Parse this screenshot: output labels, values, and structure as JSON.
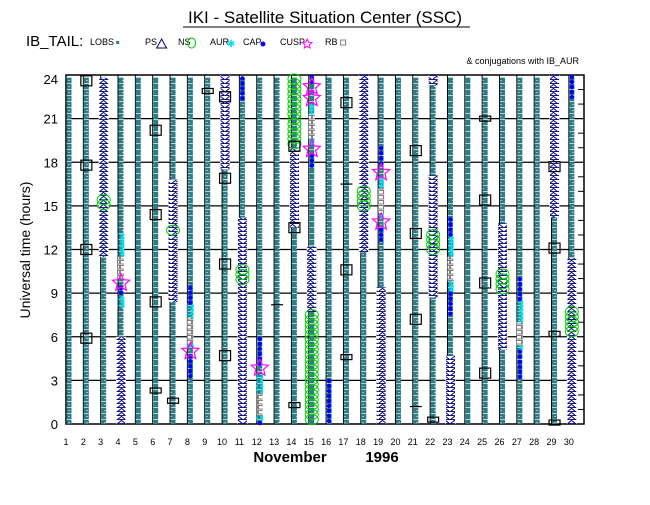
{
  "chart_data": {
    "type": "timeline",
    "title": "IKI - Satellite Situation Center (SSC)",
    "subject": "IB_TAIL:",
    "legend": [
      {
        "key": "LOBS",
        "label": "LOBS",
        "color": "#2e7d86"
      },
      {
        "key": "PS",
        "label": "PS",
        "color": "#2e7d86"
      },
      {
        "key": "NS",
        "label": "NS",
        "color": "#000080"
      },
      {
        "key": "AUR",
        "label": "AUR",
        "color": "#00cc00"
      },
      {
        "key": "CAP",
        "label": "CAP",
        "color": "#00e0ee"
      },
      {
        "key": "CUSP",
        "label": "CUSP",
        "color": "#0000ff"
      },
      {
        "key": "RB",
        "label": "RB",
        "color": "#808080"
      }
    ],
    "star_color": "#ff00ff",
    "conjugation_note": "& conjugations with IB_AUR",
    "ylabel": "Universal time (hours)",
    "xlabel_month": "November",
    "xlabel_year": "1996",
    "ylim": [
      0,
      24
    ],
    "yticks": [
      "0",
      "3",
      "6",
      "9",
      "12",
      "15",
      "18",
      "21",
      "24"
    ],
    "xticks": [
      "1",
      "2",
      "3",
      "4",
      "5",
      "6",
      "7",
      "8",
      "9",
      "10",
      "11",
      "12",
      "13",
      "14",
      "15",
      "16",
      "17",
      "18",
      "19",
      "20",
      "21",
      "22",
      "23",
      "24",
      "25",
      "26",
      "27",
      "28",
      "29",
      "30"
    ],
    "days": [
      {
        "day": 3,
        "NS": [
          [
            11.5,
            23.8
          ]
        ],
        "AUR": [
          [
            14.7,
            15.7
          ]
        ]
      },
      {
        "day": 4,
        "NS": [
          [
            0,
            6
          ]
        ],
        "CAP": [
          [
            8,
            8.8
          ],
          [
            11.5,
            13.1
          ]
        ],
        "CUSP": [
          [
            8.8,
            9.5
          ]
        ],
        "RB": [
          [
            10,
            11.5
          ]
        ],
        "stars": [
          9.7
        ]
      },
      {
        "day": 7,
        "NS": [
          [
            8.4,
            16.8
          ]
        ],
        "AUR": [
          [
            12.8,
            13.6
          ]
        ]
      },
      {
        "day": 8,
        "CUSP": [
          [
            3,
            4.8
          ],
          [
            8.3,
            9.5
          ]
        ],
        "CAP": [
          [
            5.2,
            5.5
          ],
          [
            7.3,
            8.3
          ]
        ],
        "RB": [
          [
            5.5,
            7.3
          ]
        ],
        "stars": [
          5
        ]
      },
      {
        "day": 10,
        "NS": [
          [
            17.5,
            24
          ]
        ]
      },
      {
        "day": 11,
        "NS": [
          [
            0,
            14.2
          ]
        ],
        "CUSP": [
          [
            22.3,
            23.9
          ]
        ],
        "AUR": [
          [
            9.4,
            10.9
          ]
        ]
      },
      {
        "day": 12,
        "CUSP": [
          [
            0,
            0.2
          ],
          [
            4.1,
            6
          ]
        ],
        "CAP": [
          [
            0.2,
            0.6
          ],
          [
            2.1,
            3.4
          ]
        ],
        "RB": [
          [
            0.6,
            2.1
          ]
        ],
        "stars": [
          3.85
        ]
      },
      {
        "day": 14,
        "NS": [
          [
            13.5,
            19
          ]
        ],
        "AUR": [
          [
            19,
            24
          ]
        ]
      },
      {
        "day": 15,
        "NS": [
          [
            7.7,
            12.2
          ]
        ],
        "AUR": [
          [
            0,
            7.8
          ]
        ],
        "CUSP": [
          [
            17.6,
            18.6
          ],
          [
            23.5,
            24
          ]
        ],
        "CAP": [
          [
            19.2,
            19.6
          ],
          [
            21.3,
            22
          ]
        ],
        "RB": [
          [
            19.6,
            21.3
          ]
        ],
        "stars": [
          18.9,
          22.4,
          23.2
        ]
      },
      {
        "day": 16,
        "CUSP": [
          [
            0,
            3.1
          ]
        ]
      },
      {
        "day": 18,
        "NS": [
          [
            11.8,
            24
          ]
        ],
        "AUR": [
          [
            14.6,
            16.3
          ]
        ]
      },
      {
        "day": 19,
        "NS": [
          [
            0,
            9.4
          ]
        ],
        "CUSP": [
          [
            12.5,
            13.5
          ],
          [
            17.6,
            19.1
          ]
        ],
        "CAP": [
          [
            14.2,
            14.5
          ],
          [
            16.2,
            17
          ]
        ],
        "RB": [
          [
            14.5,
            16.2
          ]
        ],
        "stars": [
          13.9,
          17.3
        ]
      },
      {
        "day": 22,
        "NS": [
          [
            8.7,
            17.1
          ],
          [
            23.3,
            24
          ]
        ],
        "AUR": [
          [
            11.6,
            13.3
          ]
        ]
      },
      {
        "day": 23,
        "NS": [
          [
            0,
            4.7
          ]
        ],
        "CUSP": [
          [
            7.5,
            9.1
          ],
          [
            12.9,
            14.2
          ]
        ],
        "CAP": [
          [
            9.1,
            9.8
          ],
          [
            11.5,
            12.9
          ]
        ],
        "RB": [
          [
            9.8,
            11.5
          ]
        ]
      },
      {
        "day": 26,
        "NS": [
          [
            5.1,
            13.8
          ]
        ],
        "AUR": [
          [
            9,
            10.6
          ]
        ]
      },
      {
        "day": 27,
        "CUSP": [
          [
            3.2,
            5.1
          ],
          [
            8.5,
            10.1
          ]
        ],
        "CAP": [
          [
            5.1,
            5.4
          ],
          [
            7,
            8.5
          ]
        ],
        "RB": [
          [
            5.4,
            7
          ]
        ]
      },
      {
        "day": 29,
        "NS": [
          [
            14.2,
            24
          ]
        ]
      },
      {
        "day": 30,
        "NS": [
          [
            0,
            11.4
          ]
        ],
        "AUR": [
          [
            6,
            8
          ]
        ],
        "CUSP": [
          [
            22.3,
            24
          ]
        ]
      }
    ],
    "conjugations": [
      {
        "day": 2,
        "hour": 23.6,
        "kind": "box"
      },
      {
        "day": 2,
        "hour": 17.8,
        "kind": "box"
      },
      {
        "day": 2,
        "hour": 12,
        "kind": "box"
      },
      {
        "day": 2,
        "hour": 5.9,
        "kind": "box"
      },
      {
        "day": 6,
        "hour": 20.2,
        "kind": "box"
      },
      {
        "day": 6,
        "hour": 14.4,
        "kind": "box"
      },
      {
        "day": 6,
        "hour": 8.4,
        "kind": "box"
      },
      {
        "day": 6,
        "hour": 2.3,
        "kind": "flat"
      },
      {
        "day": 7,
        "hour": 1.6,
        "kind": "flat"
      },
      {
        "day": 9,
        "hour": 22.9,
        "kind": "flat"
      },
      {
        "day": 10,
        "hour": 22.5,
        "kind": "box"
      },
      {
        "day": 10,
        "hour": 16.9,
        "kind": "box"
      },
      {
        "day": 10,
        "hour": 11,
        "kind": "box"
      },
      {
        "day": 10,
        "hour": 4.7,
        "kind": "box"
      },
      {
        "day": 13,
        "hour": 8.2,
        "kind": "line"
      },
      {
        "day": 14,
        "hour": 19.1,
        "kind": "box"
      },
      {
        "day": 14,
        "hour": 13.5,
        "kind": "box"
      },
      {
        "day": 14,
        "hour": 1.3,
        "kind": "flat"
      },
      {
        "day": 17,
        "hour": 22.1,
        "kind": "box"
      },
      {
        "day": 17,
        "hour": 16.5,
        "kind": "line"
      },
      {
        "day": 17,
        "hour": 10.6,
        "kind": "box"
      },
      {
        "day": 17,
        "hour": 4.6,
        "kind": "flat"
      },
      {
        "day": 21,
        "hour": 18.8,
        "kind": "box"
      },
      {
        "day": 21,
        "hour": 13.1,
        "kind": "box"
      },
      {
        "day": 21,
        "hour": 7.2,
        "kind": "box"
      },
      {
        "day": 21,
        "hour": 1.2,
        "kind": "line"
      },
      {
        "day": 22,
        "hour": 0.3,
        "kind": "flat"
      },
      {
        "day": 25,
        "hour": 21,
        "kind": "flat"
      },
      {
        "day": 25,
        "hour": 15.4,
        "kind": "box"
      },
      {
        "day": 25,
        "hour": 9.7,
        "kind": "box"
      },
      {
        "day": 25,
        "hour": 3.5,
        "kind": "box"
      },
      {
        "day": 29,
        "hour": 17.7,
        "kind": "box"
      },
      {
        "day": 29,
        "hour": 12.1,
        "kind": "box"
      },
      {
        "day": 29,
        "hour": 6.2,
        "kind": "flat"
      },
      {
        "day": 29,
        "hour": 0.1,
        "kind": "flat"
      }
    ]
  }
}
